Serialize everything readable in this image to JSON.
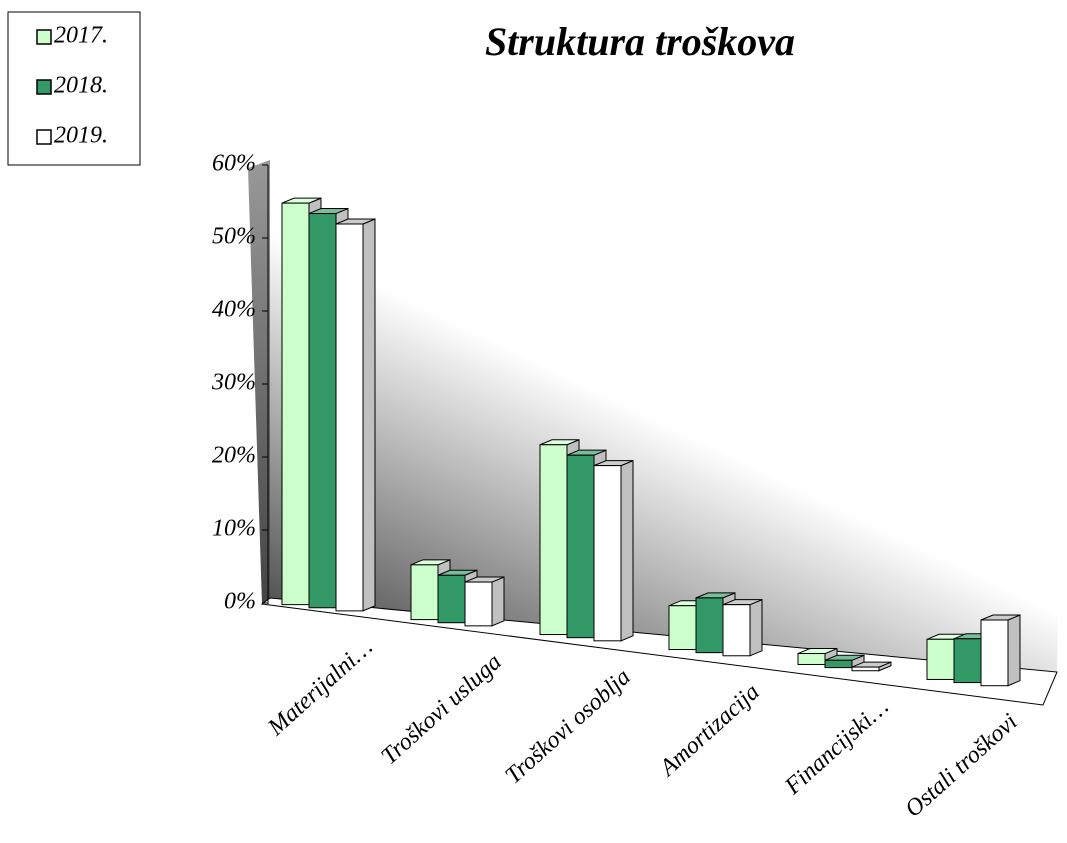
{
  "chart_data": {
    "type": "bar3d",
    "title": "Struktura troškova",
    "categories": [
      "Materijalni…",
      "Troškovi usluga",
      "Troškovi osoblja",
      "Amortizacija",
      "Financijski…",
      "Ostali troškovi"
    ],
    "series": [
      {
        "name": "2017.",
        "color": "#ccffcc",
        "values": [
          55,
          7.5,
          26,
          6,
          1.5,
          5.5
        ]
      },
      {
        "name": "2018.",
        "color": "#339966",
        "values": [
          54,
          6.5,
          25,
          7.5,
          1,
          6
        ]
      },
      {
        "name": "2019.",
        "color": "#ffffff",
        "values": [
          53,
          6,
          24,
          7,
          0.5,
          9
        ]
      }
    ],
    "ylim": [
      0,
      60
    ],
    "yticks": [
      {
        "value": 0,
        "label": "0%"
      },
      {
        "value": 10,
        "label": "10%"
      },
      {
        "value": 20,
        "label": "20%"
      },
      {
        "value": 30,
        "label": "30%"
      },
      {
        "value": 40,
        "label": "40%"
      },
      {
        "value": 50,
        "label": "50%"
      },
      {
        "value": 60,
        "label": "60%"
      }
    ],
    "legend": "top-left"
  }
}
